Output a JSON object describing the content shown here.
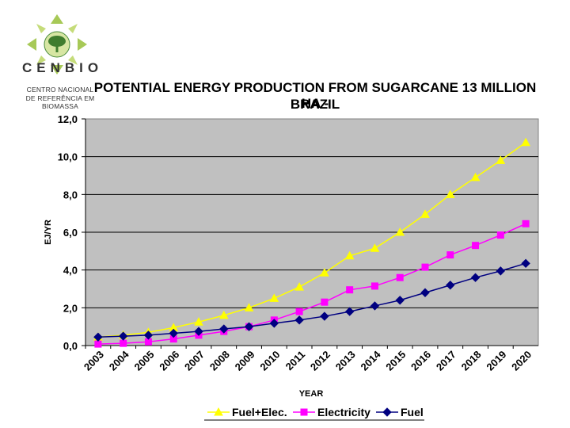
{
  "logo": {
    "name": "CENBIO",
    "caption_line1": "CENTRO NACIONAL",
    "caption_line2": "DE REFERÊNCIA EM BIOMASSA"
  },
  "chart_data": {
    "type": "line",
    "title_line1": "POTENTIAL ENERGY PRODUCTION FROM SUGARCANE 13 MILLION HA -",
    "title_line2": "BRAZIL",
    "xlabel": "YEAR",
    "ylabel": "EJ/YR",
    "ylim": [
      0,
      12
    ],
    "yticks": [
      "0,0",
      "2,0",
      "4,0",
      "6,0",
      "8,0",
      "10,0",
      "12,0"
    ],
    "categories": [
      "2003",
      "2004",
      "2005",
      "2006",
      "2007",
      "2008",
      "2009",
      "2010",
      "2011",
      "2012",
      "2013",
      "2014",
      "2015",
      "2016",
      "2017",
      "2018",
      "2019",
      "2020"
    ],
    "series": [
      {
        "name": "Fuel+Elec.",
        "color": "#ffff00",
        "marker": "triangle",
        "values": [
          0.45,
          0.55,
          0.7,
          0.95,
          1.25,
          1.6,
          2.0,
          2.5,
          3.1,
          3.85,
          4.75,
          5.15,
          6.0,
          6.95,
          8.0,
          8.9,
          9.8,
          10.75
        ]
      },
      {
        "name": "Electricity",
        "color": "#ff00ff",
        "marker": "square",
        "values": [
          0.08,
          0.12,
          0.2,
          0.35,
          0.55,
          0.75,
          1.0,
          1.35,
          1.8,
          2.3,
          2.95,
          3.15,
          3.6,
          4.15,
          4.8,
          5.3,
          5.85,
          6.45
        ]
      },
      {
        "name": "Fuel",
        "color": "#000080",
        "marker": "diamond",
        "values": [
          0.45,
          0.5,
          0.55,
          0.65,
          0.75,
          0.88,
          1.0,
          1.18,
          1.35,
          1.55,
          1.8,
          2.1,
          2.4,
          2.8,
          3.2,
          3.6,
          3.95,
          4.35
        ]
      }
    ],
    "colors": {
      "plot_bg": "#c0c0c0",
      "grid": "#000000"
    },
    "legend_position": "bottom"
  }
}
